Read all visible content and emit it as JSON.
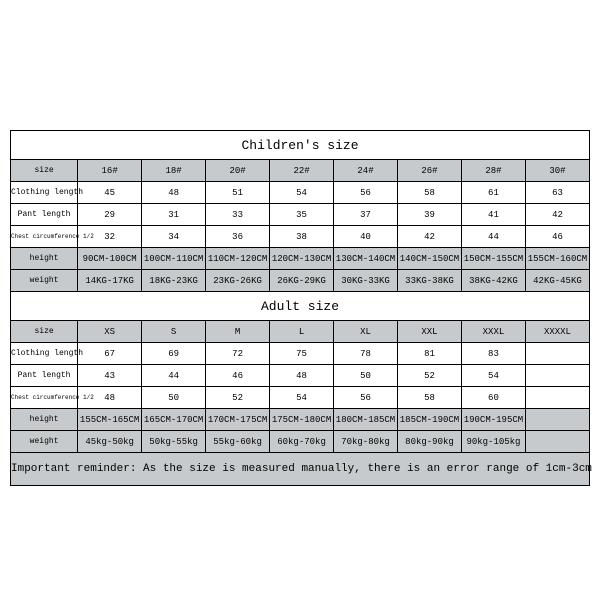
{
  "colors": {
    "shaded": "#c7cacc",
    "white": "#ffffff",
    "border": "#000000",
    "text": "#000000"
  },
  "children": {
    "title": "Children's size",
    "labels": {
      "size": "size",
      "clothing_length": "Clothing length",
      "pant_length": "Pant length",
      "chest": "Chest circumference 1/2",
      "height": "height",
      "weight": "weight"
    },
    "sizes": [
      "16#",
      "18#",
      "20#",
      "22#",
      "24#",
      "26#",
      "28#",
      "30#"
    ],
    "clothing_length": [
      "45",
      "48",
      "51",
      "54",
      "56",
      "58",
      "61",
      "63"
    ],
    "pant_length": [
      "29",
      "31",
      "33",
      "35",
      "37",
      "39",
      "41",
      "42"
    ],
    "chest": [
      "32",
      "34",
      "36",
      "38",
      "40",
      "42",
      "44",
      "46"
    ],
    "height": [
      "90CM-100CM",
      "100CM-110CM",
      "110CM-120CM",
      "120CM-130CM",
      "130CM-140CM",
      "140CM-150CM",
      "150CM-155CM",
      "155CM-160CM"
    ],
    "weight": [
      "14KG-17KG",
      "18KG-23KG",
      "23KG-26KG",
      "26KG-29KG",
      "30KG-33KG",
      "33KG-38KG",
      "38KG-42KG",
      "42KG-45KG"
    ]
  },
  "adult": {
    "title": "Adult size",
    "labels": {
      "size": "size",
      "clothing_length": "Clothing length",
      "pant_length": "Pant length",
      "chest": "Chest circumference 1/2",
      "height": "height",
      "weight": "weight"
    },
    "sizes": [
      "XS",
      "S",
      "M",
      "L",
      "XL",
      "XXL",
      "XXXL",
      "XXXXL"
    ],
    "clothing_length": [
      "67",
      "69",
      "72",
      "75",
      "78",
      "81",
      "83",
      ""
    ],
    "pant_length": [
      "43",
      "44",
      "46",
      "48",
      "50",
      "52",
      "54",
      ""
    ],
    "chest": [
      "48",
      "50",
      "52",
      "54",
      "56",
      "58",
      "60",
      ""
    ],
    "height": [
      "155CM-165CM",
      "165CM-170CM",
      "170CM-175CM",
      "175CM-180CM",
      "180CM-185CM",
      "185CM-190CM",
      "190CM-195CM",
      ""
    ],
    "weight": [
      "45kg-50kg",
      "50kg-55kg",
      "55kg-60kg",
      "60kg-70kg",
      "70kg-80kg",
      "80kg-90kg",
      "90kg-105kg",
      ""
    ]
  },
  "reminder": "Important reminder: As the size is measured manually, there is an error range of 1cm-3cm"
}
